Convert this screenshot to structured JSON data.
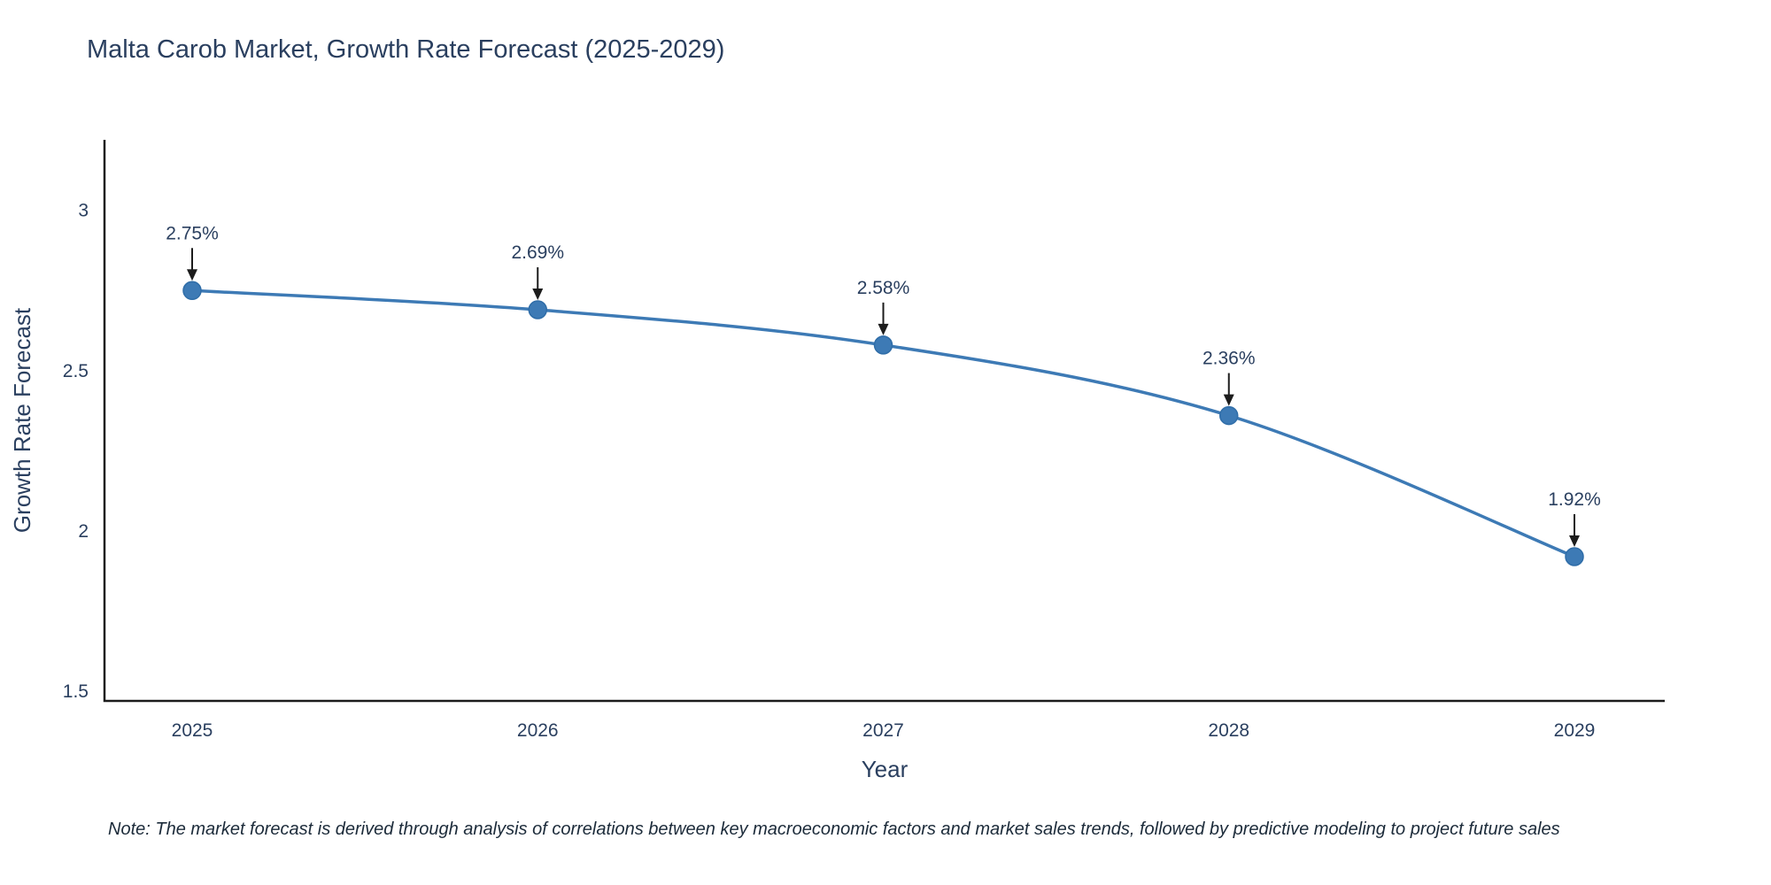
{
  "chart_data": {
    "type": "line",
    "title": "Malta Carob Market, Growth Rate Forecast (2025-2029)",
    "xlabel": "Year",
    "ylabel": "Growth Rate Forecast",
    "categories": [
      "2025",
      "2026",
      "2027",
      "2028",
      "2029"
    ],
    "values": [
      2.75,
      2.69,
      2.58,
      2.36,
      1.92
    ],
    "labels": [
      "2.75%",
      "2.69%",
      "2.58%",
      "2.36%",
      "1.92%"
    ],
    "yticks": [
      1.5,
      2,
      2.5,
      3
    ],
    "ytick_labels": [
      "1.5",
      "2",
      "2.5",
      "3"
    ],
    "ylim": [
      1.47,
      3.22
    ],
    "grid": false,
    "legend": "none",
    "line_smoothing": "spline",
    "marker": "circle"
  },
  "colors": {
    "line": "#3d7ab5",
    "marker_edge": "#2f6da8",
    "text": "#2a3f5f",
    "axis": "#1c1c1c"
  },
  "note": "Note: The market forecast is derived through analysis of correlations between key macroeconomic factors and market sales trends, followed by predictive modeling to project future sales"
}
